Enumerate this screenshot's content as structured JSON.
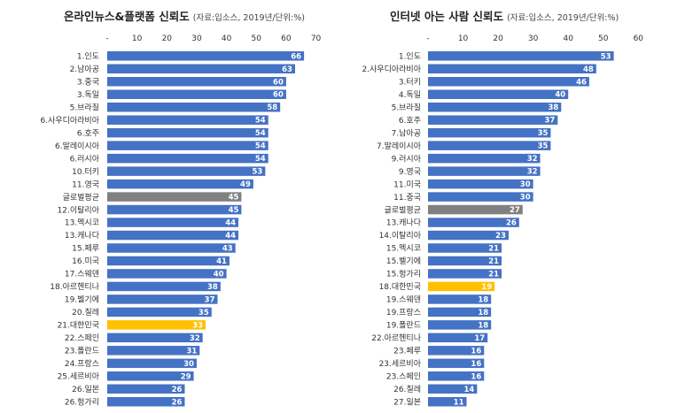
{
  "colors": {
    "default": "#4472C4",
    "average": "#808080",
    "korea": "#FFC000"
  },
  "chart_data": [
    {
      "type": "bar",
      "orientation": "horizontal",
      "title": "온라인뉴스&플랫폼 신뢰도",
      "subtitle": "(자료:입소스, 2019년/단위:%)",
      "xlim": [
        0,
        70
      ],
      "xticks": [
        "-",
        "10",
        "20",
        "30",
        "40",
        "50",
        "60",
        "70"
      ],
      "grid": false,
      "categories": [
        "1.인도",
        "2.남아공",
        "3.중국",
        "3.독일",
        "5.브라질",
        "6.사우디아라비아",
        "6.호주",
        "6.말레이시아",
        "6.러시아",
        "10.터키",
        "11.영국",
        "글로벌평균",
        "12.이탈리아",
        "13.멕시코",
        "13.캐나다",
        "15.페루",
        "16.미국",
        "17.스웨덴",
        "18.아르헨티나",
        "19.벨기에",
        "20.칠레",
        "21.대한민국",
        "22.스페인",
        "23.폴란드",
        "24.프랑스",
        "25.세르비아",
        "26.일본",
        "26.헝가리"
      ],
      "values": [
        66,
        63,
        60,
        60,
        58,
        54,
        54,
        54,
        54,
        53,
        49,
        45,
        45,
        44,
        44,
        43,
        41,
        40,
        38,
        37,
        35,
        33,
        32,
        31,
        30,
        29,
        26,
        26
      ],
      "highlight": {
        "글로벌평균": "average",
        "21.대한민국": "korea"
      }
    },
    {
      "type": "bar",
      "orientation": "horizontal",
      "title": "인터넷 아는 사람 신뢰도",
      "subtitle": "(자료:입소스, 2019년/단위:%)",
      "xlim": [
        0,
        60
      ],
      "xticks": [
        "-",
        "10",
        "20",
        "30",
        "40",
        "50",
        "60"
      ],
      "grid": false,
      "categories": [
        "1.인도",
        "2.사우디아라비아",
        "3.터키",
        "4.독일",
        "5.브라질",
        "6.호주",
        "7.남아공",
        "7.말레이시아",
        "9.러시아",
        "9.영국",
        "11.미국",
        "11.중국",
        "글로벌평균",
        "13.캐나다",
        "14.이탈리아",
        "15.멕시코",
        "15.벨기에",
        "15.헝가리",
        "18.대한민국",
        "19.스웨덴",
        "19.프랑스",
        "19.폴란드",
        "22.아르헨티나",
        "23.페루",
        "23.세르비아",
        "23.스페인",
        "26.칠레",
        "27.일본"
      ],
      "values": [
        53,
        48,
        46,
        40,
        38,
        37,
        35,
        35,
        32,
        32,
        30,
        30,
        27,
        26,
        23,
        21,
        21,
        21,
        19,
        18,
        18,
        18,
        17,
        16,
        16,
        16,
        14,
        11
      ],
      "highlight": {
        "글로벌평균": "average",
        "18.대한민국": "korea"
      }
    }
  ]
}
